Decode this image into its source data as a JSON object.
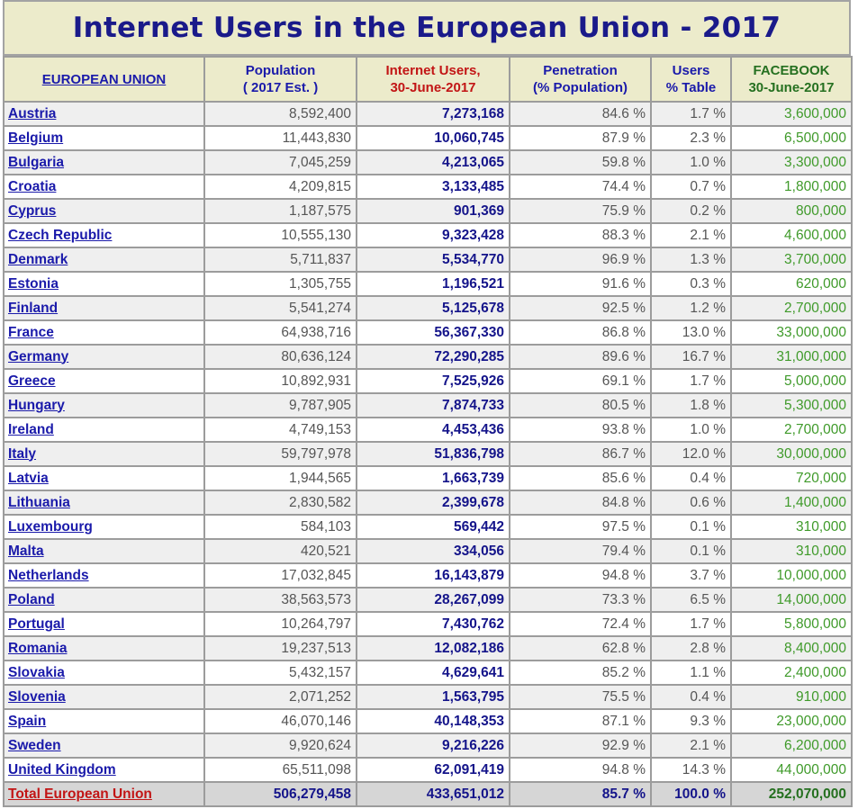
{
  "title": "Internet Users in the European Union - 2017",
  "headers": {
    "eu": "EUROPEAN UNION",
    "population_l1": "Population",
    "population_l2": "( 2017 Est. )",
    "users_l1": "Internet Users,",
    "users_l2": "30-June-2017",
    "penetration_l1": "Penetration",
    "penetration_l2": "(% Population)",
    "table_pct_l1": "Users",
    "table_pct_l2": "% Table",
    "facebook_l1": "FACEBOOK",
    "facebook_l2": "30-June-2017"
  },
  "colors": {
    "title": "#1a1a8a",
    "header_bg": "#ecebcb",
    "link": "#1a1aaa",
    "users_header": "#c21515",
    "facebook": "#3f9a2a"
  },
  "rows": [
    {
      "country": "Austria",
      "population": "8,592,400",
      "users": "7,273,168",
      "penetration": "84.6 %",
      "table_pct": "1.7 %",
      "facebook": "3,600,000"
    },
    {
      "country": "Belgium",
      "population": "11,443,830",
      "users": "10,060,745",
      "penetration": "87.9 %",
      "table_pct": "2.3 %",
      "facebook": "6,500,000"
    },
    {
      "country": "Bulgaria",
      "population": "7,045,259",
      "users": "4,213,065",
      "penetration": "59.8 %",
      "table_pct": "1.0 %",
      "facebook": "3,300,000"
    },
    {
      "country": "Croatia",
      "population": "4,209,815",
      "users": "3,133,485",
      "penetration": "74.4 %",
      "table_pct": "0.7 %",
      "facebook": "1,800,000"
    },
    {
      "country": "Cyprus",
      "population": "1,187,575",
      "users": "901,369",
      "penetration": "75.9 %",
      "table_pct": "0.2 %",
      "facebook": "800,000"
    },
    {
      "country": "Czech Republic",
      "population": "10,555,130",
      "users": "9,323,428",
      "penetration": "88.3 %",
      "table_pct": "2.1 %",
      "facebook": "4,600,000"
    },
    {
      "country": "Denmark",
      "population": "5,711,837",
      "users": "5,534,770",
      "penetration": "96.9 %",
      "table_pct": "1.3 %",
      "facebook": "3,700,000"
    },
    {
      "country": "Estonia",
      "population": "1,305,755",
      "users": "1,196,521",
      "penetration": "91.6 %",
      "table_pct": "0.3 %",
      "facebook": "620,000"
    },
    {
      "country": "Finland",
      "population": "5,541,274",
      "users": "5,125,678",
      "penetration": "92.5 %",
      "table_pct": "1.2 %",
      "facebook": "2,700,000"
    },
    {
      "country": "France",
      "population": "64,938,716",
      "users": "56,367,330",
      "penetration": "86.8 %",
      "table_pct": "13.0 %",
      "facebook": "33,000,000"
    },
    {
      "country": "Germany",
      "population": "80,636,124",
      "users": "72,290,285",
      "penetration": "89.6 %",
      "table_pct": "16.7 %",
      "facebook": "31,000,000"
    },
    {
      "country": "Greece",
      "population": "10,892,931",
      "users": "7,525,926",
      "penetration": "69.1 %",
      "table_pct": "1.7 %",
      "facebook": "5,000,000"
    },
    {
      "country": "Hungary",
      "population": "9,787,905",
      "users": "7,874,733",
      "penetration": "80.5 %",
      "table_pct": "1.8 %",
      "facebook": "5,300,000"
    },
    {
      "country": "Ireland",
      "population": "4,749,153",
      "users": "4,453,436",
      "penetration": "93.8 %",
      "table_pct": "1.0 %",
      "facebook": "2,700,000"
    },
    {
      "country": "Italy",
      "population": "59,797,978",
      "users": "51,836,798",
      "penetration": "86.7 %",
      "table_pct": "12.0 %",
      "facebook": "30,000,000"
    },
    {
      "country": "Latvia",
      "population": "1,944,565",
      "users": "1,663,739",
      "penetration": "85.6 %",
      "table_pct": "0.4 %",
      "facebook": "720,000"
    },
    {
      "country": "Lithuania",
      "population": "2,830,582",
      "users": "2,399,678",
      "penetration": "84.8 %",
      "table_pct": "0.6 %",
      "facebook": "1,400,000"
    },
    {
      "country": "Luxembourg",
      "population": "584,103",
      "users": "569,442",
      "penetration": "97.5 %",
      "table_pct": "0.1 %",
      "facebook": "310,000"
    },
    {
      "country": "Malta",
      "population": "420,521",
      "users": "334,056",
      "penetration": "79.4 %",
      "table_pct": "0.1 %",
      "facebook": "310,000"
    },
    {
      "country": "Netherlands",
      "population": "17,032,845",
      "users": "16,143,879",
      "penetration": "94.8 %",
      "table_pct": "3.7 %",
      "facebook": "10,000,000"
    },
    {
      "country": "Poland",
      "population": "38,563,573",
      "users": "28,267,099",
      "penetration": "73.3 %",
      "table_pct": "6.5 %",
      "facebook": "14,000,000"
    },
    {
      "country": "Portugal",
      "population": "10,264,797",
      "users": "7,430,762",
      "penetration": "72.4 %",
      "table_pct": "1.7 %",
      "facebook": "5,800,000"
    },
    {
      "country": "Romania",
      "population": "19,237,513",
      "users": "12,082,186",
      "penetration": "62.8 %",
      "table_pct": "2.8 %",
      "facebook": "8,400,000"
    },
    {
      "country": "Slovakia",
      "population": "5,432,157",
      "users": "4,629,641",
      "penetration": "85.2 %",
      "table_pct": "1.1 %",
      "facebook": "2,400,000"
    },
    {
      "country": "Slovenia",
      "population": "2,071,252",
      "users": "1,563,795",
      "penetration": "75.5 %",
      "table_pct": "0.4 %",
      "facebook": "910,000"
    },
    {
      "country": "Spain",
      "population": "46,070,146",
      "users": "40,148,353",
      "penetration": "87.1 %",
      "table_pct": "9.3 %",
      "facebook": "23,000,000"
    },
    {
      "country": "Sweden",
      "population": "9,920,624",
      "users": "9,216,226",
      "penetration": "92.9 %",
      "table_pct": "2.1 %",
      "facebook": "6,200,000"
    },
    {
      "country": "United Kingdom",
      "population": "65,511,098",
      "users": "62,091,419",
      "penetration": "94.8 %",
      "table_pct": "14.3 %",
      "facebook": "44,000,000"
    }
  ],
  "total": {
    "country": "Total European Union",
    "population": "506,279,458",
    "users": "433,651,012",
    "penetration": "85.7 %",
    "table_pct": "100.0 %",
    "facebook": "252,070,000"
  }
}
